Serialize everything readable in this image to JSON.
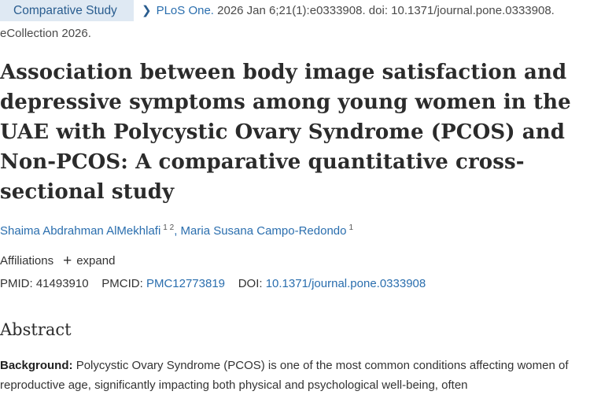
{
  "header": {
    "publication_type": "Comparative Study",
    "journal": "PLoS One.",
    "citation_rest": "2026 Jan 6;21(1):e0333908. doi: 10.1371/journal.pone.0333908.",
    "ecollection": "eCollection 2026."
  },
  "article": {
    "title": "Association between body image satisfaction and depressive symptoms among young women in the UAE with Polycystic Ovary Syndrome (PCOS) and Non-PCOS: A comparative quantitative cross-sectional study",
    "authors": [
      {
        "name": "Shaima Abdrahman AlMekhlafi",
        "affiliations": "1 2"
      },
      {
        "name": "Maria Susana Campo-Redondo",
        "affiliations": "1"
      }
    ],
    "author_separator": ",",
    "affiliations_label": "Affiliations",
    "expand_label": "expand",
    "ids": {
      "pmid_label": "PMID:",
      "pmid": "41493910",
      "pmcid_label": "PMCID:",
      "pmcid": "PMC12773819",
      "doi_label": "DOI:",
      "doi": "10.1371/journal.pone.0333908"
    }
  },
  "abstract": {
    "heading": "Abstract",
    "background_label": "Background:",
    "background_text": "Polycystic Ovary Syndrome (PCOS) is one of the most common conditions affecting women of reproductive age, significantly impacting both physical and psychological well-being, often"
  },
  "colors": {
    "link": "#2a6eae",
    "badge_bg": "#dfe9f3",
    "badge_text": "#2a5d8f"
  }
}
